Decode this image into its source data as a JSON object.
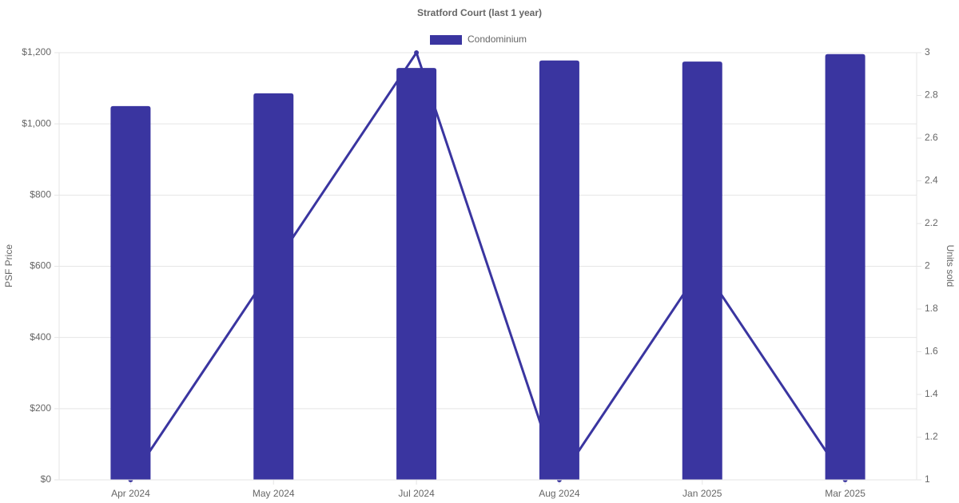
{
  "chart_data": {
    "type": "bar",
    "title": "Stratford Court (last 1 year)",
    "categories": [
      "Apr 2024",
      "May 2024",
      "Jul 2024",
      "Aug 2024",
      "Jan 2025",
      "Mar 2025"
    ],
    "series": [
      {
        "name": "Condominium",
        "color": "#3a35a0",
        "type": "bar",
        "values": [
          1050,
          1086,
          1157,
          1178,
          1175,
          1196
        ]
      },
      {
        "color": "#3a35a0",
        "type": "line",
        "axis": "y2",
        "values": [
          1,
          2,
          3,
          1,
          2,
          1
        ]
      }
    ],
    "y_label": "PSF Price",
    "y2_label": "Units sold",
    "ylim": [
      0,
      1200
    ],
    "yticks": [
      {
        "value": 0,
        "label": "$0"
      },
      {
        "value": 200,
        "label": "$200"
      },
      {
        "value": 400,
        "label": "$400"
      },
      {
        "value": 600,
        "label": "$600"
      },
      {
        "value": 800,
        "label": "$800"
      },
      {
        "value": 1000,
        "label": "$1,000"
      },
      {
        "value": 1200,
        "label": "$1,200"
      }
    ],
    "y2lim": [
      1,
      3
    ],
    "y2ticks": [
      1,
      1.2,
      1.4,
      1.6,
      1.8,
      2,
      2.2,
      2.4,
      2.6,
      2.8,
      3
    ],
    "grid": true,
    "legend": "top"
  }
}
